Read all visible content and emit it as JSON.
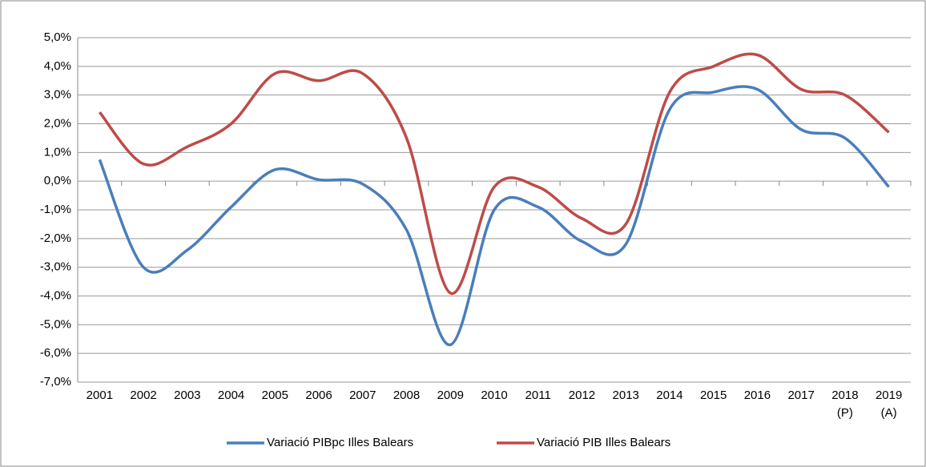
{
  "chart_data": {
    "type": "line",
    "categories": [
      "2001",
      "2002",
      "2003",
      "2004",
      "2005",
      "2006",
      "2007",
      "2008",
      "2009",
      "2010",
      "2011",
      "2012",
      "2013",
      "2014",
      "2015",
      "2016",
      "2017",
      "2018\n(P)",
      "2019\n(A)"
    ],
    "series": [
      {
        "name": "Variació PIBpc Illes Balears",
        "color": "#4a7ebb",
        "values": [
          0.75,
          -3.0,
          -2.4,
          -0.9,
          0.4,
          0.05,
          -0.1,
          -1.7,
          -5.7,
          -1.0,
          -0.9,
          -2.1,
          -2.2,
          2.5,
          3.1,
          3.2,
          1.8,
          1.5,
          -0.2
        ]
      },
      {
        "name": "Variació PIB Illes Balears",
        "color": "#be4b48",
        "values": [
          2.4,
          0.6,
          1.2,
          2.0,
          3.75,
          3.5,
          3.75,
          1.5,
          -3.9,
          -0.2,
          -0.2,
          -1.3,
          -1.5,
          3.1,
          4.0,
          4.4,
          3.2,
          3.0,
          1.7
        ]
      }
    ],
    "ylim": [
      -7,
      5
    ],
    "yticks": [
      {
        "value": -7,
        "label": "-7,0%"
      },
      {
        "value": -6,
        "label": "-6,0%"
      },
      {
        "value": -5,
        "label": "-5,0%"
      },
      {
        "value": -4,
        "label": "-4,0%"
      },
      {
        "value": -3,
        "label": "-3,0%"
      },
      {
        "value": -2,
        "label": "-2,0%"
      },
      {
        "value": -1,
        "label": "-1,0%"
      },
      {
        "value": 0,
        "label": "0,0%"
      },
      {
        "value": 1,
        "label": "1,0%"
      },
      {
        "value": 2,
        "label": "2,0%"
      },
      {
        "value": 3,
        "label": "3,0%"
      },
      {
        "value": 4,
        "label": "4,0%"
      },
      {
        "value": 5,
        "label": "5,0%"
      }
    ],
    "grid": true,
    "legend": "bottom",
    "smooth": true
  }
}
